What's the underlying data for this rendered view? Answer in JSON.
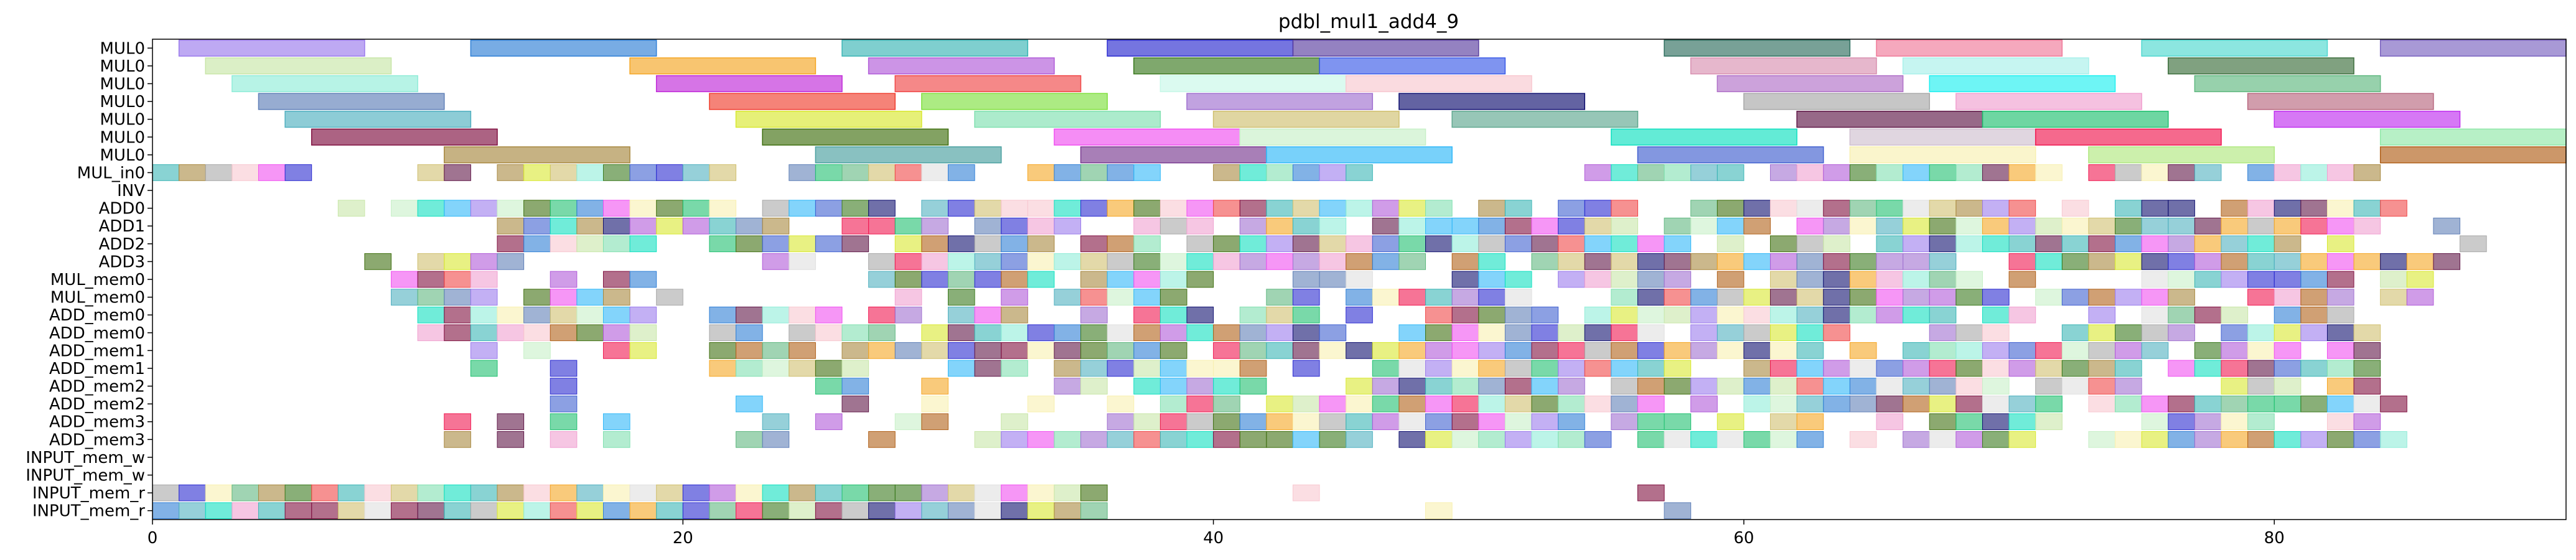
{
  "chart_data": {
    "type": "gantt",
    "title": "pdbl_mul1_add4_9",
    "xlabel": "",
    "ylabel": "",
    "xlim": [
      0,
      91
    ],
    "xticks": [
      0,
      20,
      40,
      60,
      80
    ],
    "grid": false,
    "legend": "none",
    "rows": [
      "MUL0",
      "MUL0",
      "MUL0",
      "MUL0",
      "MUL0",
      "MUL0",
      "MUL0",
      "MUL_in0",
      "INV",
      "ADD0",
      "ADD1",
      "ADD2",
      "ADD3",
      "MUL_mem0",
      "MUL_mem0",
      "ADD_mem0",
      "ADD_mem0",
      "ADD_mem1",
      "ADD_mem1",
      "ADD_mem2",
      "ADD_mem2",
      "ADD_mem3",
      "ADD_mem3",
      "INPUT_mem_w",
      "INPUT_mem_w",
      "INPUT_mem_r",
      "INPUT_mem_r"
    ],
    "bars": [
      {
        "row": 0,
        "start": 1,
        "end": 8,
        "color": "#9b7bec"
      },
      {
        "row": 0,
        "start": 12,
        "end": 19,
        "color": "#2f7fd6"
      },
      {
        "row": 0,
        "start": 26,
        "end": 33,
        "color": "#3bb5b5"
      },
      {
        "row": 0,
        "start": 36,
        "end": 43,
        "color": "#2b2bd0"
      },
      {
        "row": 0,
        "start": 43,
        "end": 50,
        "color": "#5a3fa0"
      },
      {
        "row": 0,
        "start": 57,
        "end": 64,
        "color": "#2f6f5f"
      },
      {
        "row": 0,
        "start": 65,
        "end": 72,
        "color": "#f07a9a"
      },
      {
        "row": 0,
        "start": 75,
        "end": 82,
        "color": "#4fd8d0"
      },
      {
        "row": 0,
        "start": 84,
        "end": 91,
        "color": "#7a62c0"
      },
      {
        "row": 1,
        "start": 2,
        "end": 9,
        "color": "#c8e6a8"
      },
      {
        "row": 1,
        "start": 18,
        "end": 25,
        "color": "#f5a623"
      },
      {
        "row": 1,
        "start": 27,
        "end": 34,
        "color": "#b05ad8"
      },
      {
        "row": 1,
        "start": 37,
        "end": 44,
        "color": "#3a7a1e"
      },
      {
        "row": 1,
        "start": 44,
        "end": 51,
        "color": "#3a5ae8"
      },
      {
        "row": 1,
        "start": 58,
        "end": 65,
        "color": "#d890b0"
      },
      {
        "row": 1,
        "start": 66,
        "end": 73,
        "color": "#a8f0ea"
      },
      {
        "row": 1,
        "start": 76,
        "end": 83,
        "color": "#3c6e3c"
      },
      {
        "row": 2,
        "start": 3,
        "end": 10,
        "color": "#90ecd8"
      },
      {
        "row": 2,
        "start": 19,
        "end": 26,
        "color": "#c02ad8"
      },
      {
        "row": 2,
        "start": 28,
        "end": 35,
        "color": "#f04848"
      },
      {
        "row": 2,
        "start": 38,
        "end": 45,
        "color": "#c8f8e8"
      },
      {
        "row": 2,
        "start": 45,
        "end": 52,
        "color": "#f8c8d0"
      },
      {
        "row": 2,
        "start": 59,
        "end": 66,
        "color": "#b070c8"
      },
      {
        "row": 2,
        "start": 67,
        "end": 74,
        "color": "#20f0f0"
      },
      {
        "row": 2,
        "start": 77,
        "end": 84,
        "color": "#60b880"
      },
      {
        "row": 3,
        "start": 4,
        "end": 11,
        "color": "#6080b8"
      },
      {
        "row": 3,
        "start": 21,
        "end": 28,
        "color": "#f04030"
      },
      {
        "row": 3,
        "start": 29,
        "end": 36,
        "color": "#80e040"
      },
      {
        "row": 3,
        "start": 39,
        "end": 46,
        "color": "#a070d0"
      },
      {
        "row": 3,
        "start": 47,
        "end": 54,
        "color": "#101070"
      },
      {
        "row": 3,
        "start": 60,
        "end": 67,
        "color": "#a8a8a8"
      },
      {
        "row": 3,
        "start": 68,
        "end": 75,
        "color": "#f0a0d0"
      },
      {
        "row": 3,
        "start": 79,
        "end": 86,
        "color": "#b86880"
      },
      {
        "row": 4,
        "start": 5,
        "end": 12,
        "color": "#50b0c0"
      },
      {
        "row": 4,
        "start": 22,
        "end": 29,
        "color": "#d8e830"
      },
      {
        "row": 4,
        "start": 31,
        "end": 38,
        "color": "#80e0b0"
      },
      {
        "row": 4,
        "start": 40,
        "end": 47,
        "color": "#d0c070"
      },
      {
        "row": 4,
        "start": 49,
        "end": 56,
        "color": "#60a890"
      },
      {
        "row": 4,
        "start": 62,
        "end": 69,
        "color": "#601848"
      },
      {
        "row": 4,
        "start": 69,
        "end": 76,
        "color": "#20c070"
      },
      {
        "row": 4,
        "start": 80,
        "end": 87,
        "color": "#c030f0"
      },
      {
        "row": 5,
        "start": 6,
        "end": 13,
        "color": "#801040"
      },
      {
        "row": 5,
        "start": 23,
        "end": 30,
        "color": "#407010"
      },
      {
        "row": 5,
        "start": 34,
        "end": 41,
        "color": "#f050f0"
      },
      {
        "row": 5,
        "start": 41,
        "end": 48,
        "color": "#c8f0c8"
      },
      {
        "row": 5,
        "start": 55,
        "end": 62,
        "color": "#10e0c0"
      },
      {
        "row": 5,
        "start": 64,
        "end": 71,
        "color": "#d0c0d0"
      },
      {
        "row": 5,
        "start": 71,
        "end": 78,
        "color": "#f01850"
      },
      {
        "row": 5,
        "start": 84,
        "end": 91,
        "color": "#90e8a8"
      },
      {
        "row": 6,
        "start": 11,
        "end": 18,
        "color": "#a88840"
      },
      {
        "row": 6,
        "start": 25,
        "end": 32,
        "color": "#4aa0a0"
      },
      {
        "row": 6,
        "start": 35,
        "end": 42,
        "color": "#7a3a90"
      },
      {
        "row": 6,
        "start": 42,
        "end": 49,
        "color": "#30b8f8"
      },
      {
        "row": 6,
        "start": 56,
        "end": 63,
        "color": "#4060d0"
      },
      {
        "row": 6,
        "start": 64,
        "end": 71,
        "color": "#f8f0b0"
      },
      {
        "row": 6,
        "start": 73,
        "end": 80,
        "color": "#b0e880"
      },
      {
        "row": 6,
        "start": 84,
        "end": 91,
        "color": "#b06018"
      }
    ]
  }
}
